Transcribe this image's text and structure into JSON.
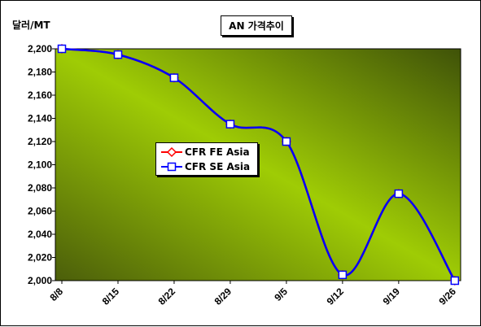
{
  "chart_data": {
    "type": "line",
    "title": "AN 가격추이",
    "ylabel": "달러/MT",
    "xlabel": "",
    "categories": [
      "8/8",
      "8/15",
      "8/22",
      "8/29",
      "9/5",
      "9/12",
      "9/19",
      "9/26"
    ],
    "ylim": [
      2000,
      2200
    ],
    "yticks": [
      "2,000",
      "2,020",
      "2,040",
      "2,060",
      "2,080",
      "2,100",
      "2,120",
      "2,140",
      "2,160",
      "2,180",
      "2,200"
    ],
    "series": [
      {
        "name": "CFR FE Asia",
        "color": "#ff0000",
        "marker": "diamond",
        "values": [
          2200,
          2195,
          2175,
          2135,
          2120,
          2005,
          2075,
          2000
        ]
      },
      {
        "name": "CFR SE Asia",
        "color": "#0000ff",
        "marker": "square",
        "values": [
          2200,
          2195,
          2175,
          2135,
          2120,
          2005,
          2075,
          2000
        ]
      }
    ],
    "legend_position": "center-left",
    "plot_background": "green-gradient",
    "grid": false
  }
}
